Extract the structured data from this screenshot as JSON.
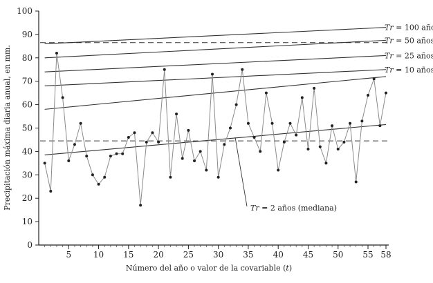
{
  "chart_data": {
    "type": "line",
    "xlabel": "Número del año o valor de la covariable (t)",
    "ylabel": "Precipitación máxima diaria anual, en mm.",
    "xlim": [
      0,
      58
    ],
    "ylim": [
      0,
      100
    ],
    "x_ticks": [
      5,
      10,
      15,
      20,
      25,
      30,
      35,
      40,
      45,
      50,
      55,
      58
    ],
    "y_ticks": [
      0,
      10,
      20,
      30,
      40,
      50,
      60,
      70,
      80,
      90,
      100
    ],
    "grid": false,
    "series": [
      {
        "x": [
          1,
          2,
          3,
          4,
          5,
          6,
          7,
          8,
          9,
          10,
          11,
          12,
          13,
          14,
          15,
          16,
          17,
          18,
          19,
          20,
          21,
          22,
          23,
          24,
          25,
          26,
          27,
          28,
          29,
          30,
          31,
          32,
          33,
          34,
          35,
          36,
          37,
          38,
          39,
          40,
          41,
          42,
          43,
          44,
          45,
          46,
          47,
          48,
          49,
          50,
          51,
          52,
          53,
          54,
          55,
          56,
          57,
          58
        ],
        "values": [
          35,
          23,
          82,
          63,
          36,
          43,
          52,
          38,
          30,
          26,
          29,
          38,
          39,
          39,
          46,
          48,
          17,
          44,
          48,
          44,
          75,
          29,
          56,
          37,
          49,
          36,
          40,
          32,
          73,
          29,
          43,
          50,
          60,
          75,
          52,
          46,
          40,
          65,
          52,
          32,
          44,
          52,
          47,
          63,
          41,
          67,
          42,
          35,
          51,
          41,
          44,
          52,
          27,
          53,
          64,
          71,
          51,
          65
        ]
      }
    ],
    "trend_lines": [
      {
        "label_prefix": "Tr",
        "label_suffix": "= 100 años",
        "x": [
          1,
          58
        ],
        "values": [
          86,
          93
        ]
      },
      {
        "label_prefix": "Tr",
        "label_suffix": "= 50 años",
        "x": [
          1,
          58
        ],
        "values": [
          80,
          87.5
        ]
      },
      {
        "label_prefix": "Tr",
        "label_suffix": "= 25 años",
        "x": [
          1,
          58
        ],
        "values": [
          74,
          81
        ]
      },
      {
        "label_prefix": "Tr",
        "label_suffix": "= 10 años",
        "x": [
          1,
          58
        ],
        "values": [
          68,
          75
        ]
      },
      {
        "x": [
          1,
          58
        ],
        "values": [
          58,
          72
        ]
      },
      {
        "label_prefix": "Tr",
        "label_suffix": "= 2 años (mediana)",
        "x": [
          1,
          58
        ],
        "values": [
          38.5,
          51.5
        ]
      }
    ],
    "reference_lines": [
      {
        "style": "dashed",
        "y": 86.5
      },
      {
        "style": "dashed",
        "y": 44.5
      }
    ]
  }
}
